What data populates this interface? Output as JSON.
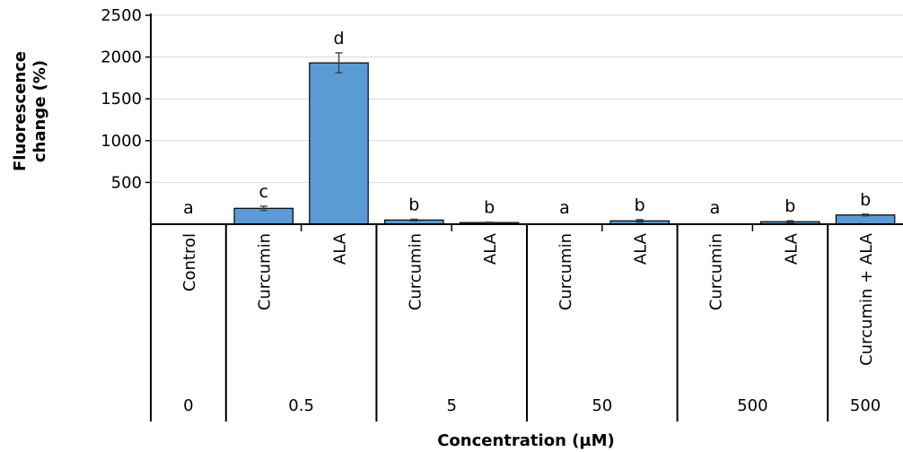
{
  "chart_data": {
    "type": "bar",
    "ylabel": "Fluorescence change (%)",
    "xlabel": "Concentration (µM)",
    "ylim": [
      0,
      2500
    ],
    "yticks": [
      500,
      1000,
      1500,
      2000,
      2500
    ],
    "grid": true,
    "bar_color": "#5b9bd5",
    "categories": [
      "Control",
      "Curcumin",
      "ALA",
      "Curcumin",
      "ALA",
      "Curcumin",
      "ALA",
      "Curcumin",
      "ALA",
      "Curcumin + ALA"
    ],
    "values": [
      0,
      190,
      1930,
      50,
      20,
      0,
      40,
      0,
      30,
      110
    ],
    "errors": [
      0,
      25,
      120,
      10,
      5,
      0,
      15,
      0,
      12,
      10
    ],
    "significance": [
      "a",
      "c",
      "d",
      "b",
      "b",
      "a",
      "b",
      "a",
      "b",
      "b"
    ],
    "groups": [
      {
        "label": "0",
        "span": 1
      },
      {
        "label": "0.5",
        "span": 2
      },
      {
        "label": "5",
        "span": 2
      },
      {
        "label": "50",
        "span": 2
      },
      {
        "label": "500",
        "span": 2
      },
      {
        "label": "500",
        "span": 1
      }
    ]
  }
}
